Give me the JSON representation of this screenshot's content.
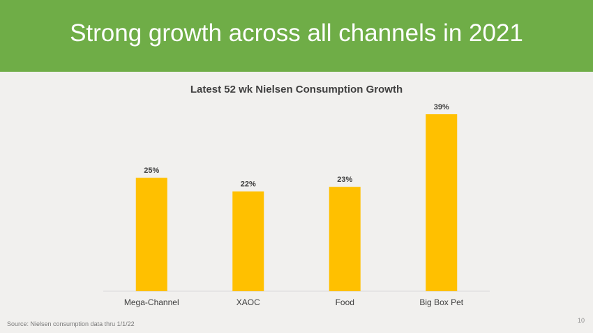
{
  "slide": {
    "title": "Strong growth across all channels in 2021",
    "source": "Source:  Nielsen consumption data thru 1/1/22",
    "page_number": "10"
  },
  "colors": {
    "header": "#6fad47",
    "bar": "#ffc000",
    "axis": "#d9d9d9",
    "text": "#404040"
  },
  "chart_data": {
    "type": "bar",
    "title": "Latest 52 wk Nielsen Consumption Growth",
    "categories": [
      "Mega-Channel",
      "XAOC",
      "Food",
      "Big Box Pet"
    ],
    "values": [
      25,
      22,
      23,
      39
    ],
    "value_labels": [
      "25%",
      "22%",
      "23%",
      "39%"
    ],
    "unit": "%",
    "ylim": [
      0,
      40
    ],
    "grid": false,
    "legend": "none",
    "xlabel": "",
    "ylabel": ""
  }
}
